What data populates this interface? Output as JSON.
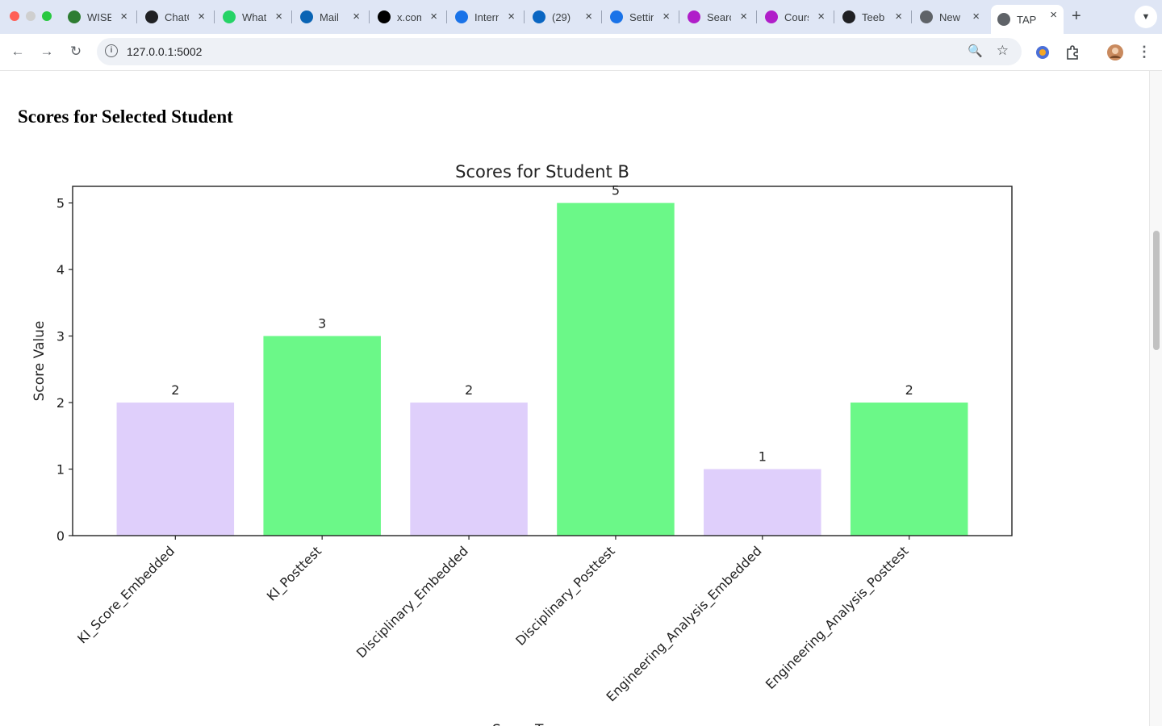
{
  "browser": {
    "tabs": [
      {
        "title": "WISE",
        "favicon_color": "#2e7d32",
        "icon": "globe-icon"
      },
      {
        "title": "ChatGPT",
        "favicon_color": "#202124",
        "icon": "openai-icon"
      },
      {
        "title": "WhatsApp",
        "favicon_color": "#25d366",
        "icon": "whatsapp-icon"
      },
      {
        "title": "Mail",
        "favicon_color": "#0a64b4",
        "icon": "outlook-icon"
      },
      {
        "title": "x.com",
        "favicon_color": "#000000",
        "icon": "x-icon"
      },
      {
        "title": "Internet",
        "favicon_color": "#1a73e8",
        "icon": "globe-icon"
      },
      {
        "title": "(29)",
        "favicon_color": "#0a66c2",
        "icon": "linkedin-icon"
      },
      {
        "title": "Settings",
        "favicon_color": "#1a73e8",
        "icon": "gear-icon"
      },
      {
        "title": "Search",
        "favicon_color": "#b01ec9",
        "icon": "search-icon"
      },
      {
        "title": "Courses",
        "favicon_color": "#b01ec9",
        "icon": "course-icon"
      },
      {
        "title": "Teeb",
        "favicon_color": "#202124",
        "icon": "github-icon"
      },
      {
        "title": "New",
        "favicon_color": "#5f6368",
        "icon": "chrome-icon"
      },
      {
        "title": "TAP",
        "favicon_color": "#5f6368",
        "icon": "globe-icon",
        "active": true
      }
    ],
    "url": "127.0.0.1:5002"
  },
  "page": {
    "heading": "Scores for Selected Student"
  },
  "chart_data": {
    "type": "bar",
    "title": "Scores for Student B",
    "xlabel": "Score Type",
    "ylabel": "Score Value",
    "categories": [
      "KI_Score_Embedded",
      "KI_Posttest",
      "Disciplinary_Embedded",
      "Disciplinary_Posttest",
      "Engineering_Analysis_Embedded",
      "Engineering_Analysis_Posttest"
    ],
    "values": [
      2,
      3,
      2,
      5,
      1,
      2
    ],
    "bar_colors": [
      "#dfcffb",
      "#6bf888",
      "#dfcffb",
      "#6bf888",
      "#dfcffb",
      "#6bf888"
    ],
    "ylim": [
      0,
      5.25
    ],
    "yticks": [
      0,
      1,
      2,
      3,
      4,
      5
    ],
    "data_labels": true,
    "grid": false
  }
}
